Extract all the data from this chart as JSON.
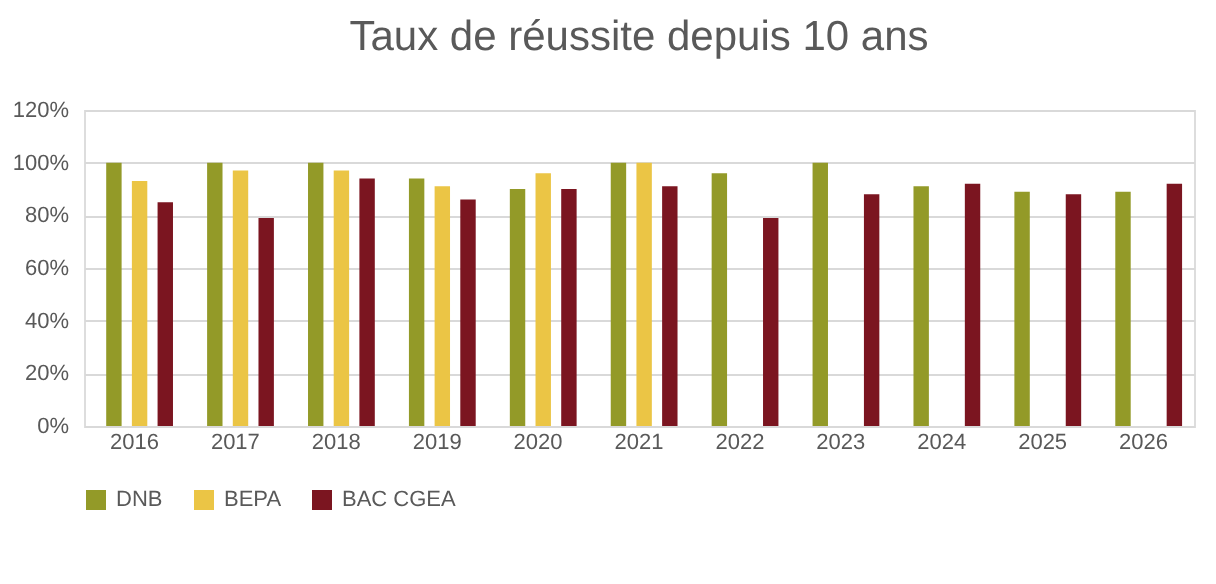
{
  "chart_data": {
    "type": "bar",
    "title": "Taux de réussite depuis 10 ans",
    "categories": [
      "2016",
      "2017",
      "2018",
      "2019",
      "2020",
      "2021",
      "2022",
      "2023",
      "2024",
      "2025",
      "2026"
    ],
    "series": [
      {
        "name": "DNB",
        "color": "#939a28",
        "values": [
          100,
          100,
          100,
          94,
          90,
          100,
          96,
          100,
          91,
          89,
          89
        ]
      },
      {
        "name": "BEPA",
        "color": "#ebc545",
        "values": [
          93,
          97,
          97,
          91,
          96,
          100,
          null,
          null,
          null,
          null,
          null
        ]
      },
      {
        "name": "BAC CGEA",
        "color": "#7b1520",
        "values": [
          85,
          79,
          94,
          86,
          90,
          91,
          79,
          88,
          92,
          88,
          92
        ]
      }
    ],
    "ylim": [
      0,
      120
    ],
    "yticks": [
      {
        "value": 0,
        "label": "0%"
      },
      {
        "value": 20,
        "label": "20%"
      },
      {
        "value": 40,
        "label": "40%"
      },
      {
        "value": 60,
        "label": "60%"
      },
      {
        "value": 80,
        "label": "80%"
      },
      {
        "value": 100,
        "label": "100%"
      },
      {
        "value": 120,
        "label": "120%"
      }
    ],
    "grid": "y",
    "legend": "bottom"
  }
}
